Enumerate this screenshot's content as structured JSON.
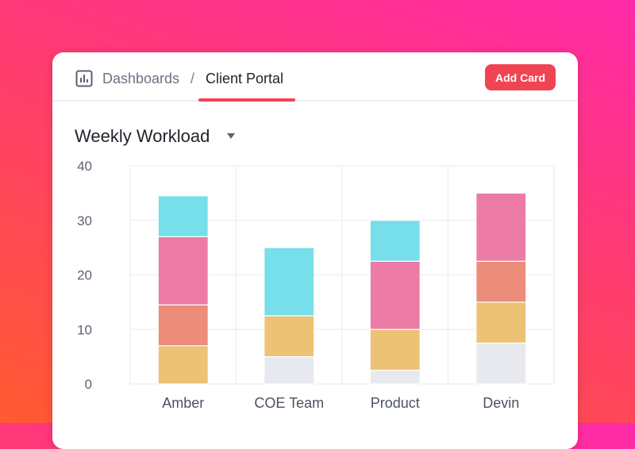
{
  "header": {
    "breadcrumb_root": "Dashboards",
    "breadcrumb_separator": "/",
    "breadcrumb_current": "Client Portal",
    "add_card_label": "Add Card",
    "icon": "bar-chart-icon"
  },
  "widget": {
    "title": "Weekly Workload",
    "dropdown_icon": "caret-down-icon"
  },
  "colors": {
    "accent": "#f04452",
    "segments": [
      "#e8e9ef",
      "#ecc275",
      "#ec8c7b",
      "#ec7ca6",
      "#76dfea"
    ]
  },
  "chart_data": {
    "type": "bar",
    "stacked": true,
    "categories": [
      "Amber",
      "COE Team",
      "Product",
      "Devin"
    ],
    "y_ticks": [
      0,
      10,
      20,
      30,
      40
    ],
    "ylim": [
      0,
      40
    ],
    "grid": true,
    "series": [
      {
        "color": "#e8e9ef",
        "values": [
          0,
          5,
          2.5,
          7.5
        ]
      },
      {
        "color": "#ecc275",
        "values": [
          7,
          7.5,
          7.5,
          7.5
        ]
      },
      {
        "color": "#ec8c7b",
        "values": [
          7.5,
          0,
          0,
          7.5
        ]
      },
      {
        "color": "#ec7ca6",
        "values": [
          12.5,
          0,
          12.5,
          12.5
        ]
      },
      {
        "color": "#76dfea",
        "values": [
          7.5,
          12.5,
          7.5,
          0
        ]
      }
    ]
  }
}
